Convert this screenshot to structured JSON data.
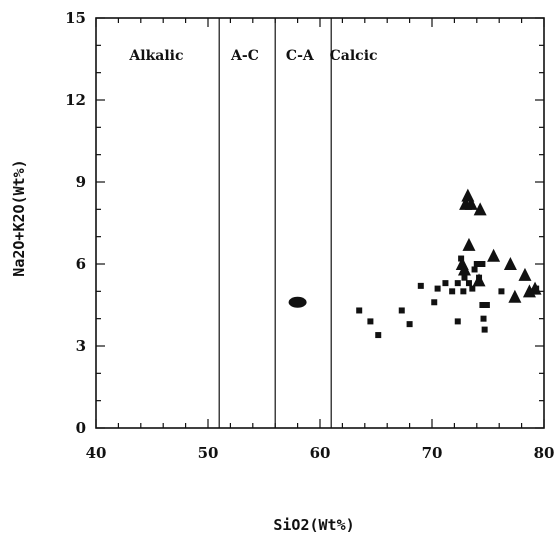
{
  "chart_data": {
    "type": "scatter",
    "xlabel": "SiO2(Wt%)",
    "ylabel": "Na2O+K2O(Wt%)",
    "xlim": [
      40,
      80
    ],
    "ylim": [
      0,
      15
    ],
    "xticks": [
      40,
      50,
      60,
      70,
      80
    ],
    "yticks": [
      0,
      3,
      6,
      9,
      12,
      15
    ],
    "grid": false,
    "fields": [
      {
        "label": "Alkalic",
        "x": 45.4
      },
      {
        "label": "A-C",
        "x": 53.3
      },
      {
        "label": "C-A",
        "x": 58.2
      },
      {
        "label": "Calcic",
        "x": 63.0
      }
    ],
    "boundaries": [
      51.0,
      56.0,
      61.0
    ],
    "series": [
      {
        "marker": "square",
        "points": [
          [
            63.5,
            4.3
          ],
          [
            64.5,
            3.9
          ],
          [
            65.2,
            3.4
          ],
          [
            67.3,
            4.3
          ],
          [
            68.0,
            3.8
          ],
          [
            69.0,
            5.2
          ],
          [
            70.2,
            4.6
          ],
          [
            70.5,
            5.1
          ],
          [
            71.2,
            5.3
          ],
          [
            71.8,
            5.0
          ],
          [
            72.3,
            5.3
          ],
          [
            72.6,
            6.2
          ],
          [
            72.8,
            5.0
          ],
          [
            73.3,
            5.3
          ],
          [
            73.6,
            5.1
          ],
          [
            73.8,
            5.8
          ],
          [
            74.0,
            6.0
          ],
          [
            74.2,
            5.5
          ],
          [
            74.5,
            4.5
          ],
          [
            74.6,
            4.0
          ],
          [
            74.7,
            3.6
          ],
          [
            74.5,
            6.0
          ],
          [
            74.9,
            4.5
          ],
          [
            72.3,
            3.9
          ],
          [
            72.9,
            5.5
          ],
          [
            76.2,
            5.0
          ],
          [
            79.3,
            5.1
          ]
        ]
      },
      {
        "marker": "triangle",
        "points": [
          [
            73.2,
            8.5
          ],
          [
            73.0,
            8.2
          ],
          [
            73.5,
            8.2
          ],
          [
            74.3,
            8.0
          ],
          [
            73.3,
            6.7
          ],
          [
            72.7,
            6.0
          ],
          [
            72.9,
            5.8
          ],
          [
            74.2,
            5.4
          ],
          [
            75.5,
            6.3
          ],
          [
            77.0,
            6.0
          ],
          [
            78.3,
            5.6
          ],
          [
            79.2,
            5.1
          ],
          [
            77.4,
            4.8
          ],
          [
            78.7,
            5.0
          ]
        ]
      },
      {
        "marker": "ellipse",
        "points": [
          [
            58.0,
            4.6
          ]
        ]
      }
    ]
  }
}
